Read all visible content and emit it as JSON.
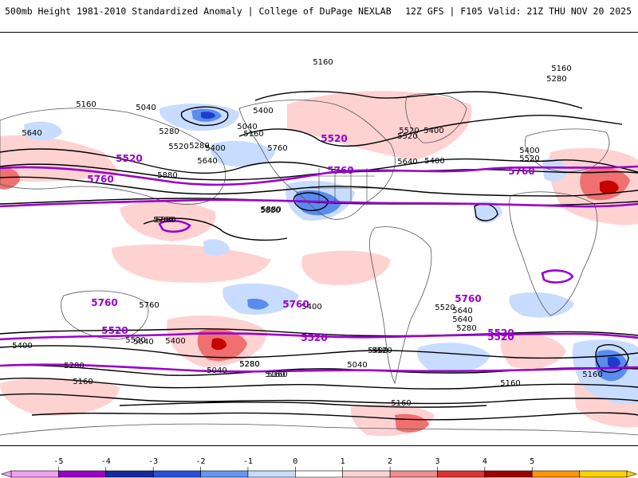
{
  "header": {
    "left_title": "500mb Height 1981-2010 Standardized Anomaly | College of DuPage NEXLAB",
    "right_title": "12Z GFS | F105 Valid: 21Z THU NOV 20 2025"
  },
  "colors": {
    "height_contour": "#000000",
    "highlight_contour": "#9900cc",
    "coast": "#555555",
    "neg_weak": "#c8dcff",
    "neg_mid": "#5a8cf0",
    "neg_strong": "#1e3cc8",
    "pos_weak": "#ffd2d2",
    "pos_mid": "#f07070",
    "pos_strong": "#c80000"
  },
  "map": {
    "product": "500mb geopotential height (dam x 10, m) with standardized anomaly shading",
    "black_contour_labels": [
      "5160",
      "5160",
      "5280",
      "5160",
      "5040",
      "5400",
      "5640",
      "5280",
      "5520",
      "5400",
      "5040",
      "5160",
      "5280",
      "5400",
      "5520",
      "5640",
      "5400",
      "5520",
      "5640",
      "5400",
      "5520",
      "5760",
      "5880",
      "5880",
      "5880",
      "5880",
      "5760",
      "5760",
      "5640",
      "5520",
      "5400",
      "5280",
      "5160",
      "5040",
      "5160",
      "5280",
      "5400",
      "5520",
      "5640",
      "5640",
      "5520",
      "5400",
      "5280",
      "5160",
      "5160",
      "5040",
      "5160",
      "5400",
      "5280",
      "5160"
    ],
    "purple_contour_labels": [
      "5520",
      "5520",
      "5520",
      "5760",
      "5760",
      "5760",
      "5760",
      "5760",
      "5760",
      "5520",
      "5520",
      "5520"
    ]
  },
  "colorbar": {
    "ticks": [
      "-5",
      "-4",
      "-3",
      "-2",
      "-1",
      "0",
      "1",
      "2",
      "3",
      "4",
      "5"
    ],
    "colors": [
      "#f0a0f0",
      "#9b00c8",
      "#1428a0",
      "#2850dc",
      "#6496f0",
      "#c8dcff",
      "#ffffff",
      "#ffd2d2",
      "#f08c8c",
      "#dc3232",
      "#a00000",
      "#ff9600",
      "#ffd200"
    ]
  }
}
